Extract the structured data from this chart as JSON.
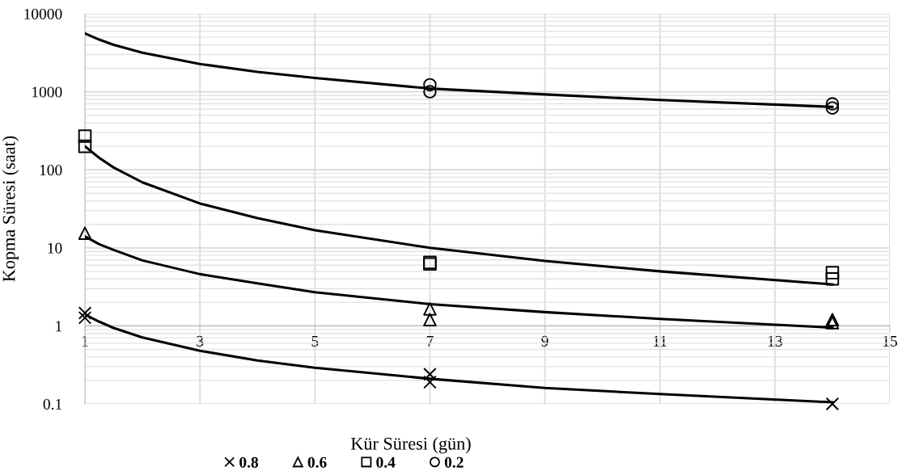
{
  "chart_data": {
    "type": "scatter",
    "xlabel": "Kür Süresi (gün)",
    "ylabel": "Kopma Süresi (saat)",
    "log": "y",
    "xlim": [
      1,
      15
    ],
    "xticks": [
      1,
      3,
      5,
      7,
      9,
      11,
      13,
      15
    ],
    "ylim": [
      0.1,
      10000
    ],
    "yticks": [
      0.1,
      1,
      10,
      100,
      1000,
      10000
    ],
    "grid": true,
    "legend": "bottom",
    "series": [
      {
        "name": "0.8",
        "marker": "cross",
        "color": "#000000",
        "x": [
          1,
          1,
          7,
          7,
          14
        ],
        "values": [
          1.46,
          1.27,
          0.24,
          0.19,
          0.1
        ]
      },
      {
        "name": "0.6",
        "marker": "triangle",
        "color": "#000000",
        "x": [
          1,
          7,
          7,
          14,
          14
        ],
        "values": [
          15.4,
          1.65,
          1.2,
          1.2,
          1.1
        ]
      },
      {
        "name": "0.4",
        "marker": "square",
        "color": "#000000",
        "x": [
          1,
          1,
          7,
          7,
          14,
          14
        ],
        "values": [
          270,
          200,
          6.5,
          6.2,
          4.8,
          4.0
        ]
      },
      {
        "name": "0.2",
        "marker": "circle",
        "color": "#000000",
        "x": [
          7,
          7,
          14,
          14
        ],
        "values": [
          1230,
          1000,
          700,
          620
        ]
      },
      {
        "type": "line",
        "marker": "none",
        "line_style": "solid",
        "color": "#000000",
        "x": [
          1,
          1.25,
          1.5,
          2,
          3,
          4,
          5,
          7,
          9,
          11,
          14
        ],
        "values": [
          1.4,
          1.13,
          0.94,
          0.71,
          0.48,
          0.36,
          0.29,
          0.21,
          0.16,
          0.134,
          0.105
        ]
      },
      {
        "type": "line",
        "marker": "none",
        "line_style": "solid",
        "color": "#000000",
        "x": [
          1,
          1.25,
          1.5,
          2,
          3,
          4,
          5,
          7,
          9,
          11,
          14
        ],
        "values": [
          14,
          11.1,
          9.4,
          6.9,
          4.6,
          3.5,
          2.7,
          1.9,
          1.5,
          1.23,
          0.95
        ]
      },
      {
        "type": "line",
        "marker": "none",
        "line_style": "solid",
        "color": "#000000",
        "x": [
          1,
          1.25,
          1.5,
          2,
          3,
          4,
          5,
          7,
          9,
          11,
          14
        ],
        "values": [
          200,
          142,
          107,
          69,
          37,
          24,
          16.8,
          10,
          6.8,
          5.0,
          3.4
        ]
      },
      {
        "type": "line",
        "marker": "none",
        "line_style": "solid",
        "color": "#000000",
        "x": [
          1,
          1.25,
          1.5,
          2,
          3,
          4,
          5,
          7,
          9,
          11,
          14
        ],
        "values": [
          5600,
          4660,
          4000,
          3160,
          2270,
          1800,
          1500,
          1100,
          925,
          785,
          640
        ]
      }
    ]
  }
}
